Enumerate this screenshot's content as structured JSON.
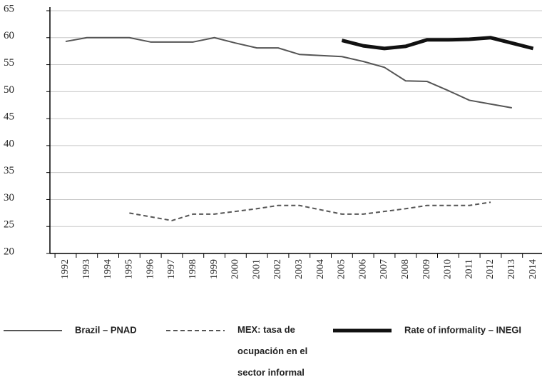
{
  "chart_data": {
    "type": "line",
    "categories": [
      "1992",
      "1993",
      "1994",
      "1995",
      "1996",
      "1997",
      "1998",
      "1999",
      "2000",
      "2001",
      "2002",
      "2003",
      "2004",
      "2005",
      "2006",
      "2007",
      "2008",
      "2009",
      "2010",
      "2011",
      "2012",
      "2013",
      "2014"
    ],
    "series": [
      {
        "name": "Brazil – PNAD",
        "color": "#555555",
        "linewidth": 2,
        "dashed": false,
        "values": [
          59.3,
          60,
          60,
          60,
          59.2,
          59.2,
          59.2,
          60,
          59,
          58.1,
          58.1,
          56.9,
          56.7,
          56.5,
          55.6,
          54.5,
          52,
          51.9,
          50.2,
          48.4,
          47.7,
          47,
          null
        ]
      },
      {
        "name": "MEX: tasa de ocupación en el sector informal",
        "color": "#555555",
        "linewidth": 2,
        "dashed": true,
        "values": [
          null,
          null,
          null,
          27.5,
          26.8,
          26.1,
          27.3,
          27.3,
          27.8,
          28.3,
          28.9,
          28.9,
          28.1,
          27.3,
          27.3,
          27.8,
          28.3,
          28.9,
          28.9,
          28.9,
          29.5,
          null,
          null
        ]
      },
      {
        "name": "Rate of informality – INEGI",
        "color": "#111111",
        "linewidth": 5,
        "dashed": false,
        "values": [
          null,
          null,
          null,
          null,
          null,
          null,
          null,
          null,
          null,
          null,
          null,
          null,
          null,
          59.5,
          58.5,
          58,
          58.4,
          59.6,
          59.6,
          59.7,
          60,
          59,
          58
        ]
      }
    ],
    "ylim": [
      20,
      65
    ],
    "yticks": [
      20,
      25,
      30,
      35,
      40,
      45,
      50,
      55,
      60,
      65
    ],
    "grid": true
  }
}
